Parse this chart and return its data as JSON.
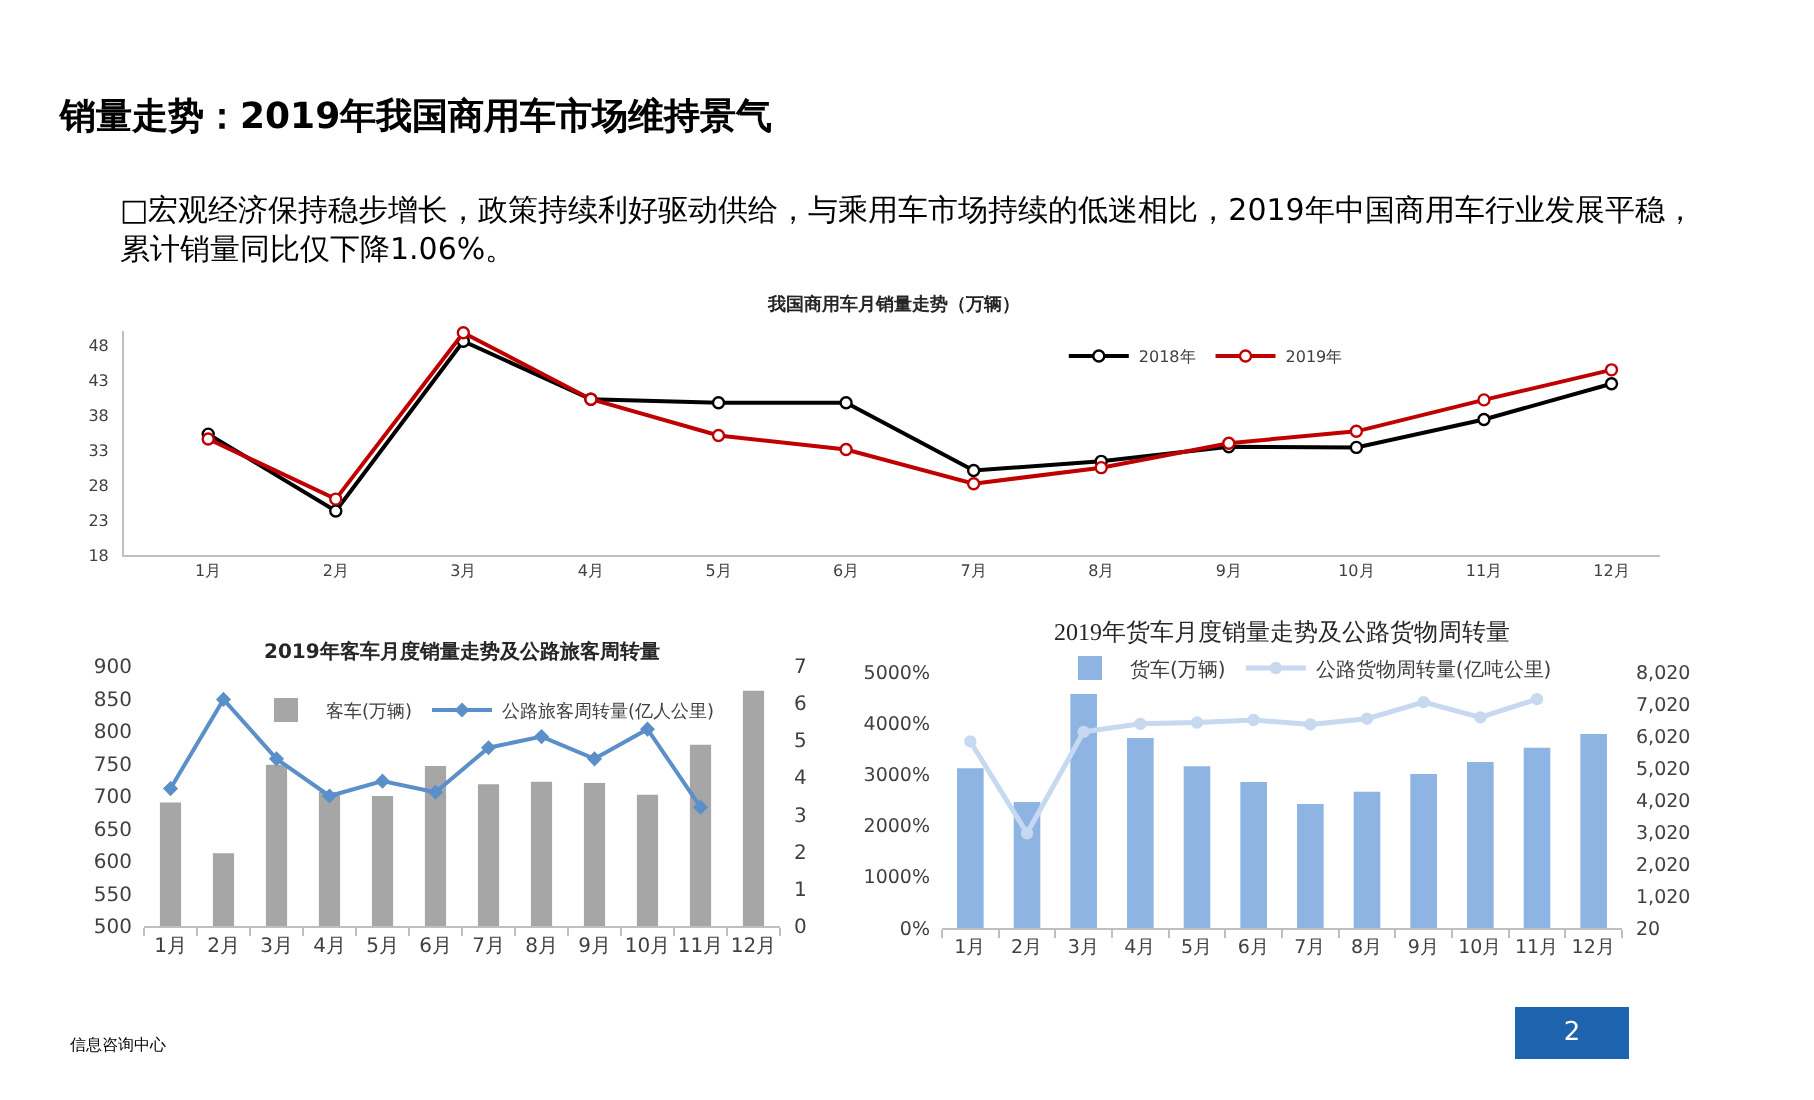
{
  "chart_data": [
    {
      "type": "other",
      "title": "销量走势：2019年我国商用车市场维持景气",
      "annotations": [
        "□宏观经济保持稳步增长，政策持续利好驱动供给，与乘用车市场持续的低迷相比，2019年中国商用车行业发展平稳，累计销量同比仅下降1.06%。",
        "信息咨询中心",
        "2"
      ]
    },
    {
      "type": "line",
      "title": "我国商用车月销量走势（万辆）",
      "categories": [
        "1月",
        "2月",
        "3月",
        "4月",
        "5月",
        "6月",
        "7月",
        "8月",
        "9月",
        "10月",
        "11月",
        "12月"
      ],
      "series": [
        {
          "name": "2018年",
          "color": "#000000",
          "values": [
            35.3,
            24.3,
            48.6,
            40.3,
            39.8,
            39.8,
            30.1,
            31.4,
            33.5,
            33.4,
            37.4,
            42.5
          ]
        },
        {
          "name": "2019年",
          "color": "#c00000",
          "values": [
            34.6,
            26.0,
            49.8,
            40.3,
            35.1,
            33.1,
            28.2,
            30.5,
            34.0,
            35.7,
            40.2,
            44.5
          ]
        }
      ],
      "ylim": [
        18,
        50
      ],
      "yticks": [
        18,
        23,
        28,
        33,
        38,
        43,
        48
      ],
      "legend": "top right",
      "marker": "circle"
    },
    {
      "type": "bar",
      "title": "2019年客车月度销量走势及公路旅客周转量",
      "categories": [
        "1月",
        "2月",
        "3月",
        "4月",
        "5月",
        "6月",
        "7月",
        "8月",
        "9月",
        "10月",
        "11月",
        "12月"
      ],
      "series": [
        {
          "name": "客车(万辆)",
          "color": "#a6a6a6",
          "values": [
            690,
            612,
            748,
            706,
            700,
            746,
            718,
            722,
            720,
            702,
            779,
            862
          ]
        },
        {
          "name": "公路旅客周转量(亿人公里)",
          "type": "line",
          "axis": "y2",
          "color": "#5a8fc9",
          "values": [
            3.7,
            6.1,
            4.5,
            3.5,
            3.9,
            3.6,
            4.8,
            5.1,
            4.5,
            5.3,
            3.2,
            null
          ]
        }
      ],
      "ylim": [
        500,
        900
      ],
      "yticks": [
        500,
        550,
        600,
        650,
        700,
        750,
        800,
        850,
        900
      ],
      "y2lim": [
        0,
        7
      ],
      "y2ticks": [
        0,
        1,
        2,
        3,
        4,
        5,
        6,
        7
      ],
      "legend": "top",
      "marker": "diamond"
    },
    {
      "type": "bar",
      "title": "2019年货车月度销量走势及公路货物周转量",
      "categories": [
        "1月",
        "2月",
        "3月",
        "4月",
        "5月",
        "6月",
        "7月",
        "8月",
        "9月",
        "10月",
        "11月",
        "12月"
      ],
      "series": [
        {
          "name": "货车(万辆)",
          "color": "#8db4e2",
          "values": [
            3120,
            2460,
            4570,
            3710,
            3160,
            2850,
            2420,
            2660,
            3010,
            3240,
            3520,
            3790
          ]
        },
        {
          "name": "公路货物周转量(亿吨公里)",
          "type": "line",
          "axis": "y2",
          "color": "#c6d9f0",
          "values": [
            5850,
            2980,
            6150,
            6400,
            6440,
            6520,
            6380,
            6560,
            7080,
            6600,
            7170,
            null
          ]
        }
      ],
      "ylim": [
        0,
        5000
      ],
      "yticks": [
        {
          "value": 0,
          "label": "0%"
        },
        {
          "value": 1000,
          "label": "1000%"
        },
        {
          "value": 2000,
          "label": "2000%"
        },
        {
          "value": 3000,
          "label": "3000%"
        },
        {
          "value": 4000,
          "label": "4000%"
        },
        {
          "value": 5000,
          "label": "5000%"
        }
      ],
      "y2lim": [
        20,
        8020
      ],
      "y2ticks": [
        20,
        {
          "value": 1020,
          "label": "1,020"
        },
        {
          "value": 2020,
          "label": "2,020"
        },
        {
          "value": 3020,
          "label": "3,020"
        },
        {
          "value": 4020,
          "label": "4,020"
        },
        {
          "value": 5020,
          "label": "5,020"
        },
        {
          "value": 6020,
          "label": "6,020"
        },
        {
          "value": 7020,
          "label": "7,020"
        },
        {
          "value": 8020,
          "label": "8,020"
        }
      ],
      "legend": "top",
      "marker": "circle"
    }
  ]
}
